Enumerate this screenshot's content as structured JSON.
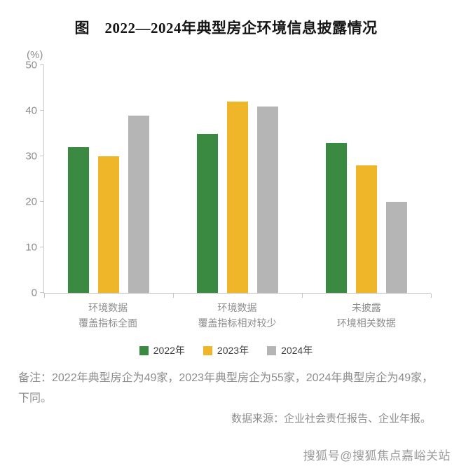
{
  "page": {
    "title": "图　2022—2024年典型房企环境信息披露情况",
    "note": "备注：2022年典型房企为49家，2023年典型房企为55家，2024年典型房企为49家，下同。",
    "source": "数据来源：企业社会责任报告、企业年报。",
    "watermark": "搜狐号@搜狐焦点嘉峪关站"
  },
  "chart_data": {
    "type": "bar",
    "title": "2022—2024年典型房企环境信息披露情况",
    "ylabel": "(%)",
    "xlabel": "",
    "ylim": [
      0,
      50
    ],
    "yticks": [
      0,
      10,
      20,
      30,
      40,
      50
    ],
    "grid": false,
    "legend_position": "bottom",
    "categories": [
      [
        "环境数据",
        "覆盖指标全面"
      ],
      [
        "环境数据",
        "覆盖指标相对较少"
      ],
      [
        "未披露",
        "环境相关数据"
      ]
    ],
    "series": [
      {
        "name": "2022年",
        "color": "#3a8a42",
        "values": [
          32,
          35,
          33
        ]
      },
      {
        "name": "2023年",
        "color": "#f0b62a",
        "values": [
          30,
          42,
          28
        ]
      },
      {
        "name": "2024年",
        "color": "#b5b5b5",
        "values": [
          39,
          41,
          20
        ]
      }
    ]
  }
}
